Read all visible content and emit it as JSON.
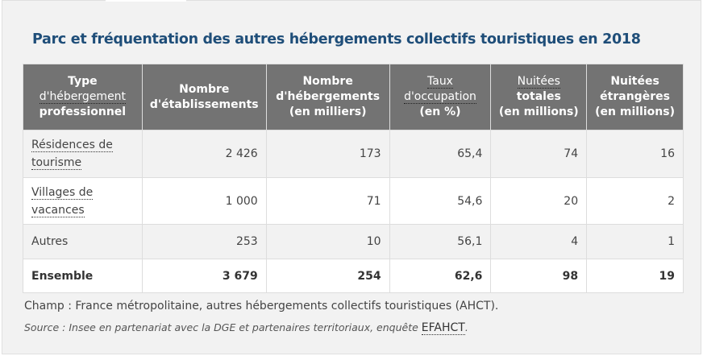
{
  "title": "Parc et fréquentation des autres hébergements collectifs touristiques en 2018",
  "table": {
    "headers": [
      {
        "l1": "Type",
        "abbr": "d'hébergement",
        "l3": "professionnel"
      },
      {
        "l1": "Nombre",
        "l2": "d'établissements"
      },
      {
        "l1": "Nombre",
        "l2": "d'hébergements",
        "l3": "(en milliers)"
      },
      {
        "abbr": "Taux",
        "abbr2": "d'occupation",
        "l3": "(en %)"
      },
      {
        "abbr": "Nuitées",
        "l2": "totales",
        "l3": "(en millions)"
      },
      {
        "l1": "Nuitées",
        "l2": "étrangères",
        "l3": "(en millions)"
      }
    ],
    "rows": [
      {
        "label1": "Résidences de",
        "label2": "tourisme",
        "values": [
          "2 426",
          "173",
          "65,4",
          "74",
          "16"
        ]
      },
      {
        "label1": "Villages de",
        "label2": "vacances",
        "values": [
          "1 000",
          "71",
          "54,6",
          "20",
          "2"
        ]
      },
      {
        "label": "Autres",
        "values": [
          "253",
          "10",
          "56,1",
          "4",
          "1"
        ]
      },
      {
        "label": "Ensemble",
        "values": [
          "3 679",
          "254",
          "62,6",
          "98",
          "19"
        ]
      }
    ]
  },
  "note": "Champ : France métropolitaine, autres hébergements collectifs touristiques (AHCT).",
  "source": {
    "prefix": "Source : Insee en partenariat avec la DGE et partenaires territoriaux, enquête ",
    "abbr": "EFAHCT",
    "suffix": "."
  }
}
